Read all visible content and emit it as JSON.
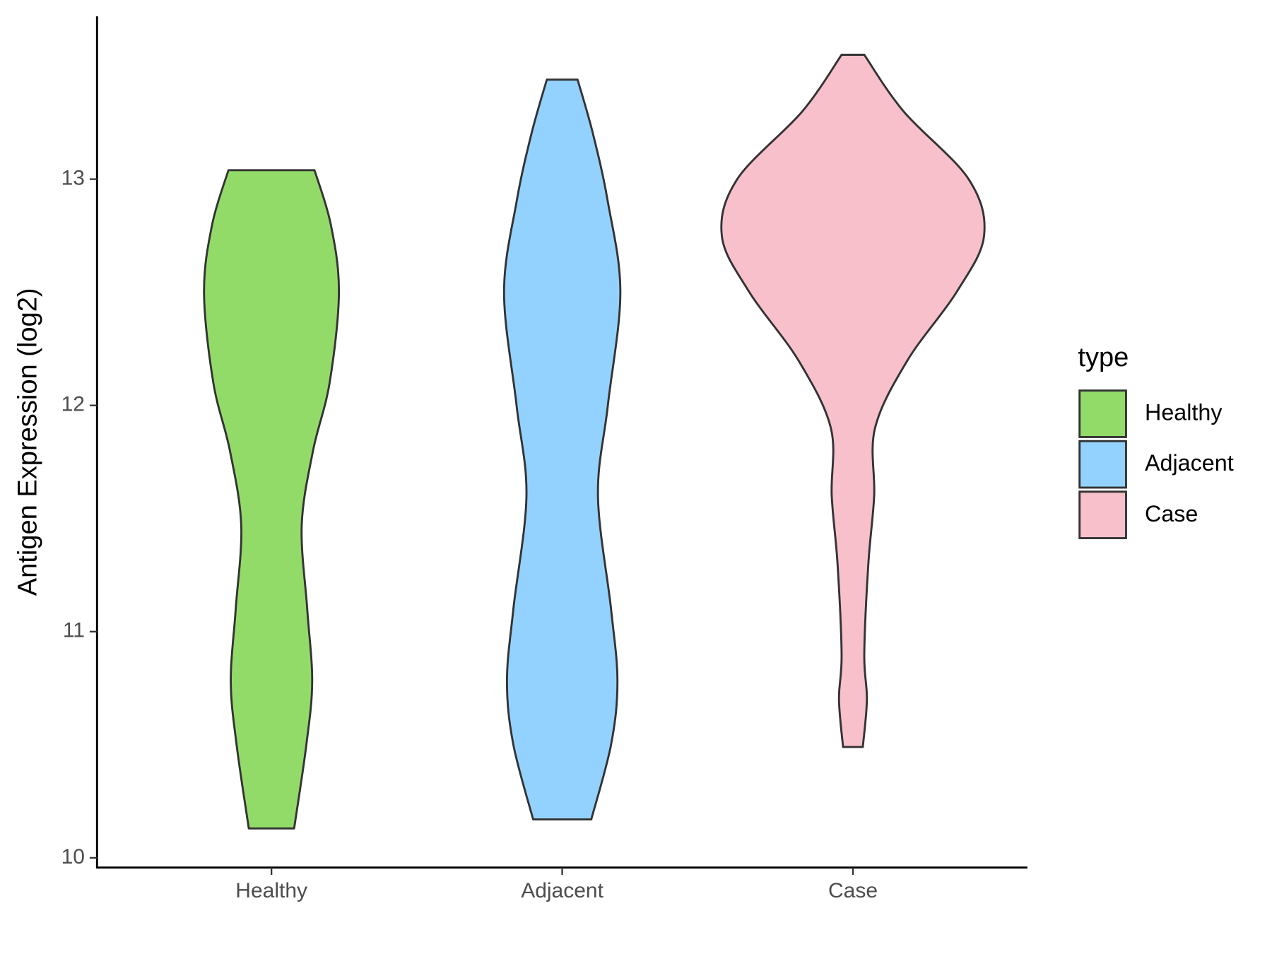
{
  "chart_data": {
    "type": "violin",
    "y_label": "Antigen Expression (log2)",
    "categories": [
      "Healthy",
      "Adjacent",
      "Case"
    ],
    "legend_title": "type",
    "ylim": [
      9.957,
      13.72
    ],
    "yticks": [
      10,
      11,
      12,
      13
    ],
    "series": [
      {
        "name": "Healthy",
        "color": "#93db69",
        "y": [
          10.13,
          10.5,
          10.78,
          11.1,
          11.47,
          11.8,
          12.1,
          12.5,
          12.8,
          13.04
        ],
        "half_width": [
          0.078,
          0.12,
          0.14,
          0.123,
          0.104,
          0.143,
          0.2,
          0.232,
          0.204,
          0.148
        ]
      },
      {
        "name": "Adjacent",
        "color": "#93d2ff",
        "y": [
          10.17,
          10.5,
          10.78,
          11.1,
          11.6,
          12.0,
          12.5,
          12.9,
          13.2,
          13.44
        ],
        "half_width": [
          0.1,
          0.168,
          0.19,
          0.168,
          0.123,
          0.157,
          0.2,
          0.157,
          0.106,
          0.053
        ]
      },
      {
        "name": "Case",
        "color": "#f7c0cb",
        "y": [
          10.49,
          10.7,
          10.9,
          11.3,
          11.6,
          11.9,
          12.2,
          12.5,
          12.75,
          13.0,
          13.3,
          13.55
        ],
        "half_width": [
          0.034,
          0.048,
          0.039,
          0.053,
          0.073,
          0.076,
          0.188,
          0.356,
          0.451,
          0.398,
          0.174,
          0.039
        ]
      }
    ]
  }
}
